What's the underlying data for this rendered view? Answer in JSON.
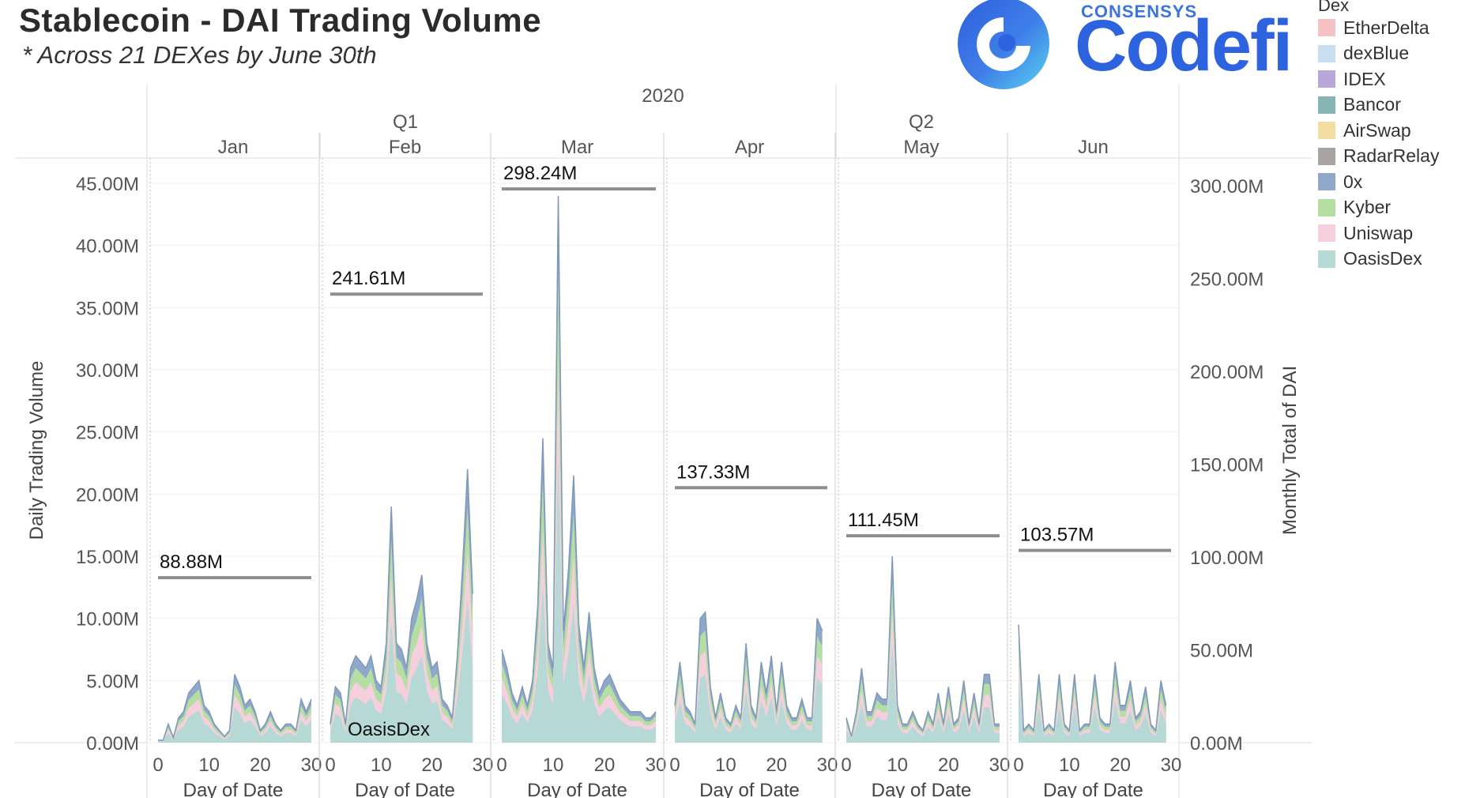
{
  "header": {
    "title": "Stablecoin - DAI Trading Volume",
    "subtitle": "*  Across 21 DEXes by June 30th"
  },
  "logo": {
    "top_text": "CONSENSYS",
    "main_text": "Codefi",
    "color": "#2e63df"
  },
  "legend": {
    "title": "Dex",
    "items": [
      {
        "label": "EtherDelta",
        "color": "#f4c2c2"
      },
      {
        "label": "dexBlue",
        "color": "#c9dff0"
      },
      {
        "label": "IDEX",
        "color": "#b9a6d9"
      },
      {
        "label": "Bancor",
        "color": "#86b5b3"
      },
      {
        "label": "AirSwap",
        "color": "#f2dca2"
      },
      {
        "label": "RadarRelay",
        "color": "#a9a3a1"
      },
      {
        "label": "0x",
        "color": "#8fa8c9"
      },
      {
        "label": "Kyber",
        "color": "#b4dea2"
      },
      {
        "label": "Uniswap",
        "color": "#f6cfdf"
      },
      {
        "label": "OasisDex",
        "color": "#b6d9d5"
      }
    ]
  },
  "chart_data": {
    "type": "area",
    "year_label": "2020",
    "quarters": [
      {
        "label": "Q1",
        "months": [
          "Jan",
          "Feb",
          "Mar"
        ]
      },
      {
        "label": "Q2",
        "months": [
          "Apr",
          "May",
          "Jun"
        ]
      }
    ],
    "months": [
      "Jan",
      "Feb",
      "Mar",
      "Apr",
      "May",
      "Jun"
    ],
    "xlabel": "Day of Date",
    "xticks": [
      "0",
      "10",
      "20",
      "30"
    ],
    "ylabel_left": "Daily Trading Volume",
    "ylabel_right": "Monthly Total of DAI",
    "yticks_left": [
      "0.00M",
      "5.00M",
      "10.00M",
      "15.00M",
      "20.00M",
      "25.00M",
      "30.00M",
      "35.00M",
      "40.00M",
      "45.00M"
    ],
    "yticks_right": [
      "0.00M",
      "50.00M",
      "100.00M",
      "150.00M",
      "200.00M",
      "250.00M",
      "300.00M"
    ],
    "ylim_left": [
      0,
      45
    ],
    "ylim_right": [
      0,
      300
    ],
    "monthly_totals": [
      {
        "month": "Jan",
        "value": 88.88,
        "label": "88.88M"
      },
      {
        "month": "Feb",
        "value": 241.61,
        "label": "241.61M"
      },
      {
        "month": "Mar",
        "value": 298.24,
        "label": "298.24M"
      },
      {
        "month": "Apr",
        "value": 137.33,
        "label": "137.33M"
      },
      {
        "month": "May",
        "value": 111.45,
        "label": "111.45M"
      },
      {
        "month": "Jun",
        "value": 103.57,
        "label": "103.57M"
      }
    ],
    "area_annotation": "OasisDex",
    "daily_total": [
      [
        0.2,
        0.2,
        1.5,
        0.4,
        2.0,
        2.5,
        4.0,
        4.5,
        5.0,
        3.0,
        2.5,
        1.5,
        1.0,
        0.5,
        1.0,
        5.5,
        4.5,
        3.0,
        3.5,
        2.5,
        1.0,
        1.5,
        2.5,
        1.5,
        1.0,
        1.5,
        1.5,
        1.0,
        3.5,
        2.5,
        3.5
      ],
      [
        1.5,
        4.5,
        4.0,
        1.5,
        6.0,
        7.0,
        6.5,
        6.0,
        7.0,
        5.0,
        4.5,
        8.0,
        19.0,
        8.0,
        7.5,
        6.0,
        10.0,
        11.5,
        13.5,
        8.0,
        6.0,
        6.5,
        3.5,
        3.0,
        2.0,
        7.0,
        14.0,
        22.0,
        12.0
      ],
      [
        7.5,
        6.0,
        4.0,
        3.0,
        4.5,
        3.0,
        5.0,
        11.0,
        24.5,
        8.0,
        6.0,
        44.0,
        9.0,
        14.0,
        21.5,
        9.5,
        6.0,
        10.5,
        6.0,
        4.0,
        5.0,
        5.5,
        4.5,
        3.5,
        3.0,
        2.5,
        2.5,
        2.5,
        2.0,
        2.0,
        2.5
      ],
      [
        3.0,
        6.5,
        3.0,
        2.5,
        1.5,
        10.0,
        10.5,
        4.5,
        2.0,
        4.0,
        2.0,
        1.5,
        3.0,
        2.0,
        8.0,
        3.0,
        2.0,
        6.5,
        4.0,
        7.0,
        2.5,
        6.5,
        3.0,
        2.0,
        2.0,
        3.5,
        2.0,
        2.0,
        10.0,
        9.0
      ],
      [
        2.0,
        0.5,
        2.5,
        6.0,
        2.5,
        2.5,
        4.0,
        3.5,
        3.5,
        15.0,
        3.0,
        1.5,
        1.5,
        2.5,
        1.5,
        1.0,
        2.5,
        1.5,
        4.0,
        1.5,
        4.5,
        1.5,
        2.0,
        5.0,
        1.5,
        4.0,
        1.5,
        5.5,
        5.5,
        1.5,
        1.5
      ],
      [
        9.5,
        1.0,
        1.5,
        1.0,
        5.5,
        1.0,
        1.5,
        1.0,
        5.5,
        1.5,
        1.0,
        5.5,
        1.0,
        1.5,
        1.5,
        5.5,
        2.0,
        1.5,
        1.5,
        6.5,
        3.0,
        3.0,
        5.0,
        2.0,
        2.5,
        4.5,
        1.5,
        1.0,
        5.0,
        3.0
      ]
    ]
  }
}
